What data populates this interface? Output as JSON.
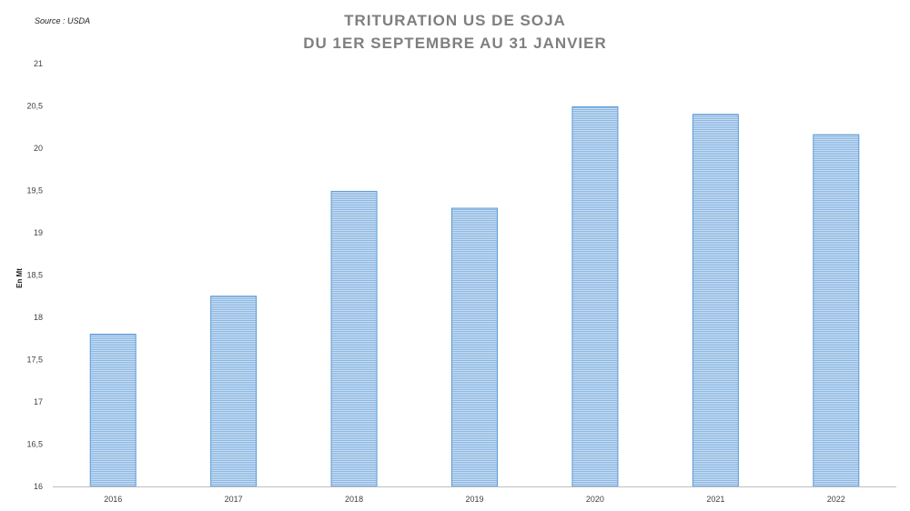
{
  "source": "Source : USDA",
  "chart_data": {
    "type": "bar",
    "title": [
      "TRITURATION US DE SOJA",
      "DU 1ER SEPTEMBRE AU 31 JANVIER"
    ],
    "xlabel": "",
    "ylabel": "En Mt",
    "categories": [
      "2016",
      "2017",
      "2018",
      "2019",
      "2020",
      "2021",
      "2022"
    ],
    "values": [
      17.8,
      18.25,
      19.49,
      19.29,
      20.49,
      20.4,
      20.16
    ],
    "ylim": [
      16,
      21
    ],
    "yticks": [
      16,
      16.5,
      17,
      17.5,
      18,
      18.5,
      19,
      19.5,
      20,
      20.5,
      21
    ],
    "ytick_labels": [
      "16",
      "16,5",
      "17",
      "17,5",
      "18",
      "18,5",
      "19",
      "19,5",
      "20",
      "20,5",
      "21"
    ],
    "grid": false,
    "bar_color": "#9dc3e6",
    "bar_edge_color": "#5b9bd5"
  }
}
